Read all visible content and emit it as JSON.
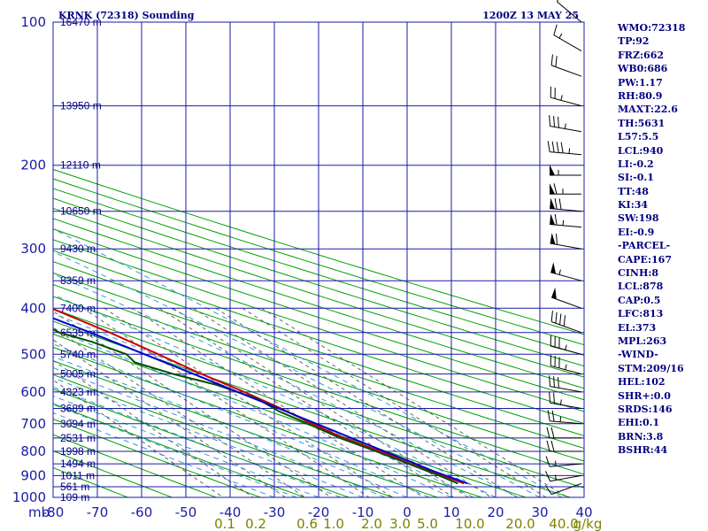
{
  "header": {
    "title": "KRNK (72318) Sounding",
    "time": "1200Z 13 MAY 25"
  },
  "indices": [
    "WMO:72318",
    "TP:92",
    "FRZ:662",
    "WB0:686",
    "PW:1.17",
    "RH:80.9",
    "MAXT:22.6",
    "TH:5631",
    "L57:5.5",
    "LCL:940",
    "LI:-0.2",
    "SI:-0.1",
    "TT:48",
    "KI:34",
    "SW:198",
    "EI:-0.9",
    "-PARCEL-",
    "CAPE:167",
    "CINH:8",
    "LCL:878",
    "CAP:0.5",
    "LFC:813",
    "EL:373",
    "MPL:263",
    "-WIND-",
    "STM:209/16",
    "HEL:102",
    "SHR+:0.0",
    "SRDS:146",
    "EHI:0.1",
    "BRN:3.8",
    "BSHR:44"
  ],
  "colors": {
    "grid": "#1a1aa8",
    "dry_adiabat": "#00a000",
    "moist_adiabat": "#3399dd",
    "mixing_ratio": "#555555",
    "temperature": "#cc0000",
    "dewpoint": "#005000",
    "parcel": "#0000cc",
    "mixing_label": "#808000"
  },
  "chart_data": {
    "type": "skew-t",
    "pressure_axis": {
      "unit_label": "mb",
      "ticks": [
        100,
        200,
        300,
        400,
        500,
        600,
        700,
        800,
        900,
        1000
      ],
      "range": [
        100,
        1000
      ],
      "scale": "log"
    },
    "temperature_axis": {
      "ticks": [
        -80,
        -70,
        -60,
        -50,
        -40,
        -30,
        -20,
        -10,
        0,
        10,
        20,
        30,
        40
      ],
      "range": [
        -80,
        40
      ]
    },
    "height_labels": [
      {
        "p": 100,
        "label": "16470 m"
      },
      {
        "p": 150,
        "label": "13950 m"
      },
      {
        "p": 200,
        "label": "12110 m"
      },
      {
        "p": 250,
        "label": "10650 m"
      },
      {
        "p": 300,
        "label": "9430 m"
      },
      {
        "p": 350,
        "label": "8359 m"
      },
      {
        "p": 400,
        "label": "7400 m"
      },
      {
        "p": 450,
        "label": "6535 m"
      },
      {
        "p": 500,
        "label": "5740 m"
      },
      {
        "p": 550,
        "label": "5005 m"
      },
      {
        "p": 600,
        "label": "4323 m"
      },
      {
        "p": 650,
        "label": "3689 m"
      },
      {
        "p": 700,
        "label": "3094 m"
      },
      {
        "p": 750,
        "label": "2531 m"
      },
      {
        "p": 800,
        "label": "1998 m"
      },
      {
        "p": 850,
        "label": "1494 m"
      },
      {
        "p": 900,
        "label": "1011 m"
      },
      {
        "p": 950,
        "label": "561 m"
      },
      {
        "p": 1000,
        "label": "109 m"
      }
    ],
    "mixing_ratio_labels": [
      "0.1",
      "0.2",
      "0.6",
      "1.0",
      "2.0",
      "3.0",
      "5.0",
      "10.0",
      "20.0",
      "40.0"
    ],
    "mixing_ratio_unit": "g/kg",
    "mixing_ratio_values": [
      0.1,
      0.2,
      0.4,
      0.6,
      1.0,
      2.0,
      3.0,
      5.0,
      8.0,
      10.0,
      14.0,
      20.0,
      30.0,
      40.0
    ],
    "dry_adiabats_theta_K": [
      210,
      220,
      230,
      240,
      250,
      260,
      270,
      280,
      290,
      300,
      310,
      320,
      330,
      340,
      350,
      360,
      370,
      380,
      390,
      400,
      410,
      420,
      430,
      440,
      450
    ],
    "moist_adiabats_base_T": [
      -30,
      -25,
      -20,
      -15,
      -10,
      -5,
      0,
      5,
      10,
      15,
      20,
      25,
      30,
      35
    ],
    "series": [
      {
        "name": "",
        "kind": "temperature",
        "points": [
          {
            "p": 935,
            "t": 16.8
          },
          {
            "p": 900,
            "t": 14.2
          },
          {
            "p": 850,
            "t": 10.2
          },
          {
            "p": 800,
            "t": 7.0
          },
          {
            "p": 750,
            "t": 2.4
          },
          {
            "p": 700,
            "t": -0.6
          },
          {
            "p": 650,
            "t": -3.4
          },
          {
            "p": 600,
            "t": -7.0
          },
          {
            "p": 550,
            "t": -11.6
          },
          {
            "p": 500,
            "t": -15.8
          },
          {
            "p": 450,
            "t": -20.6
          },
          {
            "p": 400,
            "t": -27.0
          },
          {
            "p": 350,
            "t": -33.2
          },
          {
            "p": 320,
            "t": -37.8
          },
          {
            "p": 300,
            "t": -42.2
          },
          {
            "p": 280,
            "t": -46.8
          },
          {
            "p": 250,
            "t": -53.0
          },
          {
            "p": 230,
            "t": -57.2
          },
          {
            "p": 210,
            "t": -60.6
          },
          {
            "p": 190,
            "t": -62.6
          },
          {
            "p": 170,
            "t": -63.8
          },
          {
            "p": 150,
            "t": -65.0
          },
          {
            "p": 130,
            "t": -67.8
          },
          {
            "p": 115,
            "t": -69.8
          },
          {
            "p": 100,
            "t": -72.0
          }
        ]
      },
      {
        "name": "",
        "kind": "dewpoint",
        "points": [
          {
            "p": 935,
            "t": 15.4
          },
          {
            "p": 900,
            "t": 13.4
          },
          {
            "p": 850,
            "t": 9.8
          },
          {
            "p": 800,
            "t": 6.0
          },
          {
            "p": 750,
            "t": 1.6
          },
          {
            "p": 700,
            "t": -1.6
          },
          {
            "p": 660,
            "t": -4.6
          },
          {
            "p": 620,
            "t": -6.0
          },
          {
            "p": 600,
            "t": -8.6
          },
          {
            "p": 580,
            "t": -11.2
          },
          {
            "p": 550,
            "t": -18.0
          },
          {
            "p": 520,
            "t": -23.4
          },
          {
            "p": 500,
            "t": -23.0
          },
          {
            "p": 470,
            "t": -27.4
          },
          {
            "p": 450,
            "t": -32.0
          },
          {
            "p": 420,
            "t": -34.2
          },
          {
            "p": 400,
            "t": -40.0
          },
          {
            "p": 390,
            "t": -35.0
          },
          {
            "p": 380,
            "t": -34.8
          },
          {
            "p": 370,
            "t": -36.4
          },
          {
            "p": 350,
            "t": -40.6
          },
          {
            "p": 320,
            "t": -45.6
          },
          {
            "p": 300,
            "t": -50.4
          },
          {
            "p": 280,
            "t": -55.0
          },
          {
            "p": 250,
            "t": -62.0
          },
          {
            "p": 230,
            "t": -66.0
          },
          {
            "p": 210,
            "t": -68.4
          },
          {
            "p": 190,
            "t": -72.0
          },
          {
            "p": 170,
            "t": -76.0
          },
          {
            "p": 150,
            "t": -80.4
          },
          {
            "p": 130,
            "t": -85.6
          },
          {
            "p": 115,
            "t": -88.0
          },
          {
            "p": 100,
            "t": -90.0
          }
        ]
      },
      {
        "name": "",
        "kind": "parcel",
        "points": [
          {
            "p": 935,
            "t": 17.6
          },
          {
            "p": 900,
            "t": 14.9
          },
          {
            "p": 878,
            "t": 13.2
          },
          {
            "p": 850,
            "t": 11.4
          },
          {
            "p": 800,
            "t": 7.9
          },
          {
            "p": 750,
            "t": 4.2
          },
          {
            "p": 700,
            "t": 0.3
          },
          {
            "p": 650,
            "t": -3.9
          },
          {
            "p": 600,
            "t": -8.5
          },
          {
            "p": 550,
            "t": -13.4
          },
          {
            "p": 500,
            "t": -18.9
          },
          {
            "p": 450,
            "t": -25.0
          },
          {
            "p": 400,
            "t": -32.4
          },
          {
            "p": 373,
            "t": -36.8
          },
          {
            "p": 350,
            "t": -40.8
          },
          {
            "p": 300,
            "t": -50.8
          },
          {
            "p": 250,
            "t": -62.0
          },
          {
            "p": 200,
            "t": -75.0
          },
          {
            "p": 170,
            "t": -84.0
          },
          {
            "p": 150,
            "t": -91.0
          }
        ]
      }
    ],
    "wind_barbs": [
      {
        "p": 935,
        "dir": 250,
        "spd": 10
      },
      {
        "p": 900,
        "dir": 260,
        "spd": 15
      },
      {
        "p": 850,
        "dir": 265,
        "spd": 15
      },
      {
        "p": 800,
        "dir": 270,
        "spd": 20
      },
      {
        "p": 750,
        "dir": 270,
        "spd": 20
      },
      {
        "p": 700,
        "dir": 275,
        "spd": 25
      },
      {
        "p": 650,
        "dir": 280,
        "spd": 25
      },
      {
        "p": 600,
        "dir": 280,
        "spd": 30
      },
      {
        "p": 550,
        "dir": 285,
        "spd": 35
      },
      {
        "p": 500,
        "dir": 285,
        "spd": 35
      },
      {
        "p": 450,
        "dir": 290,
        "spd": 40
      },
      {
        "p": 400,
        "dir": 290,
        "spd": 50
      },
      {
        "p": 350,
        "dir": 285,
        "spd": 55
      },
      {
        "p": 300,
        "dir": 280,
        "spd": 60
      },
      {
        "p": 270,
        "dir": 275,
        "spd": 65
      },
      {
        "p": 250,
        "dir": 275,
        "spd": 70
      },
      {
        "p": 230,
        "dir": 270,
        "spd": 65
      },
      {
        "p": 210,
        "dir": 270,
        "spd": 55
      },
      {
        "p": 190,
        "dir": 275,
        "spd": 45
      },
      {
        "p": 170,
        "dir": 280,
        "spd": 35
      },
      {
        "p": 150,
        "dir": 285,
        "spd": 25
      },
      {
        "p": 130,
        "dir": 290,
        "spd": 20
      },
      {
        "p": 115,
        "dir": 300,
        "spd": 15
      },
      {
        "p": 100,
        "dir": 310,
        "spd": 10
      }
    ]
  }
}
